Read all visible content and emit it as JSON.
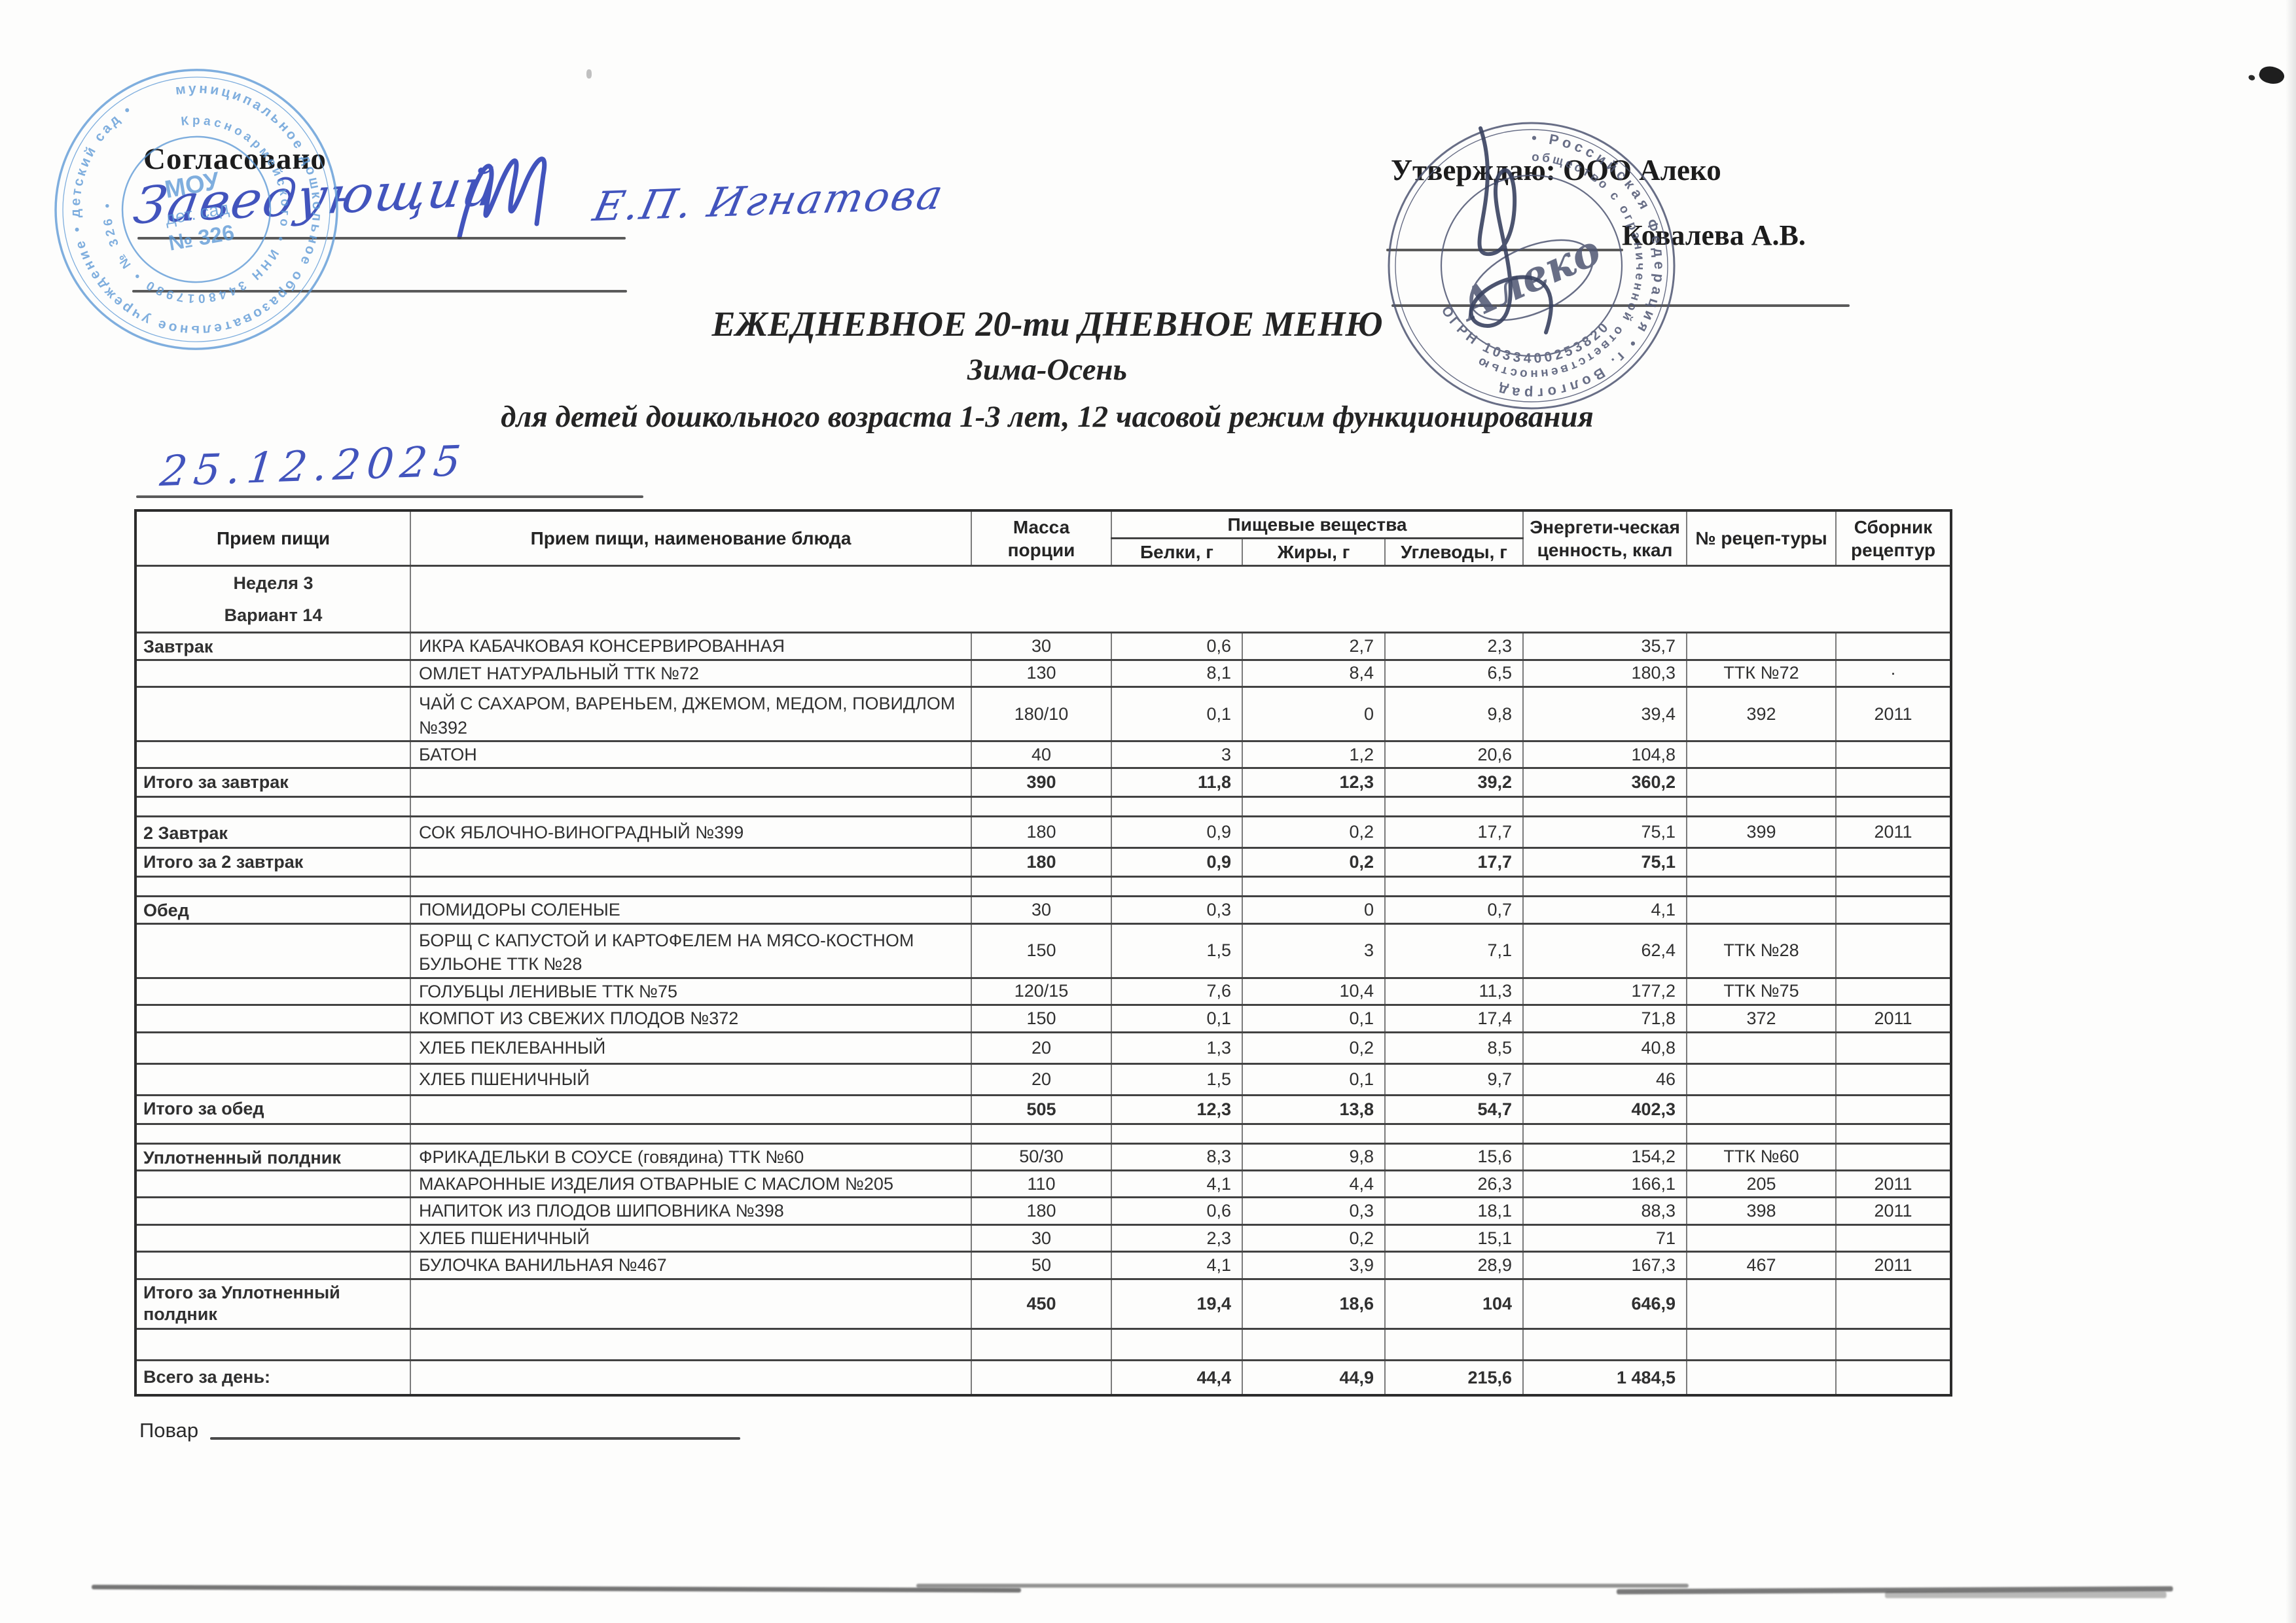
{
  "approvals": {
    "left_label": "Согласовано",
    "left_role_handwritten": "Заведующий",
    "left_name_handwritten": "Е.П. Игнатова",
    "right_label": "Утверждаю: ООО Алеко",
    "right_name": "Ковалева А.В."
  },
  "titles": {
    "line1": "ЕЖЕДНЕВНОЕ 20-ти ДНЕВНОЕ МЕНЮ",
    "line2": "Зима-Осень",
    "line3": "для детей дошкольного возраста 1-3 лет, 12 часовой режим функционирования"
  },
  "date_handwritten": "25.12.2025",
  "stamps": {
    "left": {
      "color": "#5c99d6",
      "ring_outer": "муниципальное дошкольное образовательное учреждение • детский сад •",
      "ring_inner": "Красноармейского • ИНН 3448017980 • № 326 •",
      "center_line1": "МОУ",
      "center_line2": "дет. сад",
      "center_line3": "№ 326"
    },
    "right": {
      "color": "#4f5672",
      "ring_outer": "• Российская Федерация • г. Волгоград ",
      "ring_inner": "общество с ограниченной ответственностью",
      "ogrn": "ОГРН 1033400253820",
      "center": "Алеко"
    }
  },
  "table": {
    "headers": {
      "meal": "Прием пищи",
      "dish": "Прием пищи, наименование блюда",
      "mass": "Масса\nпорции",
      "nutrients_group": "Пищевые вещества",
      "protein": "Белки, г",
      "fat": "Жиры, г",
      "carbs": "Углеводы, г",
      "energy": "Энергети-ческая\nценность, ккал",
      "recipe": "№ рецеп-туры",
      "source": "Сборник\nрецептур"
    },
    "rows": [
      {
        "kind": "week",
        "line1": "Неделя 3",
        "line2": "Вариант 14"
      },
      {
        "kind": "dish",
        "meal": "Завтрак",
        "dish": "ИКРА КАБАЧКОВАЯ КОНСЕРВИРОВАННАЯ",
        "mass": "30",
        "protein": "0,6",
        "fat": "2,7",
        "carbs": "2,3",
        "kcal": "35,7",
        "recipe": "",
        "source": ""
      },
      {
        "kind": "dish",
        "meal": "",
        "dish": "ОМЛЕТ НАТУРАЛЬНЫЙ ТТК №72",
        "mass": "130",
        "protein": "8,1",
        "fat": "8,4",
        "carbs": "6,5",
        "kcal": "180,3",
        "recipe": "ТТК №72",
        "source": "·"
      },
      {
        "kind": "dish",
        "size": "tall",
        "meal": "",
        "dish": "ЧАЙ С САХАРОМ, ВАРЕНЬЕМ, ДЖЕМОМ, МЕДОМ, ПОВИДЛОМ\n№392",
        "mass": "180/10",
        "protein": "0,1",
        "fat": "0",
        "carbs": "9,8",
        "kcal": "39,4",
        "recipe": "392",
        "source": "2011"
      },
      {
        "kind": "dish",
        "meal": "",
        "dish": "БАТОН",
        "mass": "40",
        "protein": "3",
        "fat": "1,2",
        "carbs": "20,6",
        "kcal": "104,8",
        "recipe": "",
        "source": ""
      },
      {
        "kind": "total",
        "meal": "Итого за завтрак",
        "dish": "",
        "mass": "390",
        "protein": "11,8",
        "fat": "12,3",
        "carbs": "39,2",
        "kcal": "360,2",
        "recipe": "",
        "source": ""
      },
      {
        "kind": "spacer"
      },
      {
        "kind": "dish",
        "size": "roomy",
        "meal": "2 Завтрак",
        "dish": "СОК ЯБЛОЧНО-ВИНОГРАДНЫЙ №399",
        "mass": "180",
        "protein": "0,9",
        "fat": "0,2",
        "carbs": "17,7",
        "kcal": "75,1",
        "recipe": "399",
        "source": "2011"
      },
      {
        "kind": "total",
        "meal": "Итого за 2 завтрак",
        "dish": "",
        "mass": "180",
        "protein": "0,9",
        "fat": "0,2",
        "carbs": "17,7",
        "kcal": "75,1",
        "recipe": "",
        "source": ""
      },
      {
        "kind": "spacer"
      },
      {
        "kind": "dish",
        "meal": "Обед",
        "dish": "ПОМИДОРЫ СОЛЕНЫЕ",
        "mass": "30",
        "protein": "0,3",
        "fat": "0",
        "carbs": "0,7",
        "kcal": "4,1",
        "recipe": "",
        "source": ""
      },
      {
        "kind": "dish",
        "size": "tall",
        "meal": "",
        "dish": "БОРЩ С КАПУСТОЙ И КАРТОФЕЛЕМ НА МЯСО-КОСТНОМ\nБУЛЬОНЕ ТТК №28",
        "mass": "150",
        "protein": "1,5",
        "fat": "3",
        "carbs": "7,1",
        "kcal": "62,4",
        "recipe": "ТТК №28",
        "source": ""
      },
      {
        "kind": "dish",
        "meal": "",
        "dish": "ГОЛУБЦЫ ЛЕНИВЫЕ ТТК №75",
        "mass": "120/15",
        "protein": "7,6",
        "fat": "10,4",
        "carbs": "11,3",
        "kcal": "177,2",
        "recipe": "ТТК №75",
        "source": ""
      },
      {
        "kind": "dish",
        "meal": "",
        "dish": "КОМПОТ ИЗ СВЕЖИХ ПЛОДОВ №372",
        "mass": "150",
        "protein": "0,1",
        "fat": "0,1",
        "carbs": "17,4",
        "kcal": "71,8",
        "recipe": "372",
        "source": "2011"
      },
      {
        "kind": "dish",
        "size": "roomy",
        "meal": "",
        "dish": "ХЛЕБ ПЕКЛЕВАННЫЙ",
        "mass": "20",
        "protein": "1,3",
        "fat": "0,2",
        "carbs": "8,5",
        "kcal": "40,8",
        "recipe": "",
        "source": ""
      },
      {
        "kind": "dish",
        "size": "roomy",
        "meal": "",
        "dish": "ХЛЕБ ПШЕНИЧНЫЙ",
        "mass": "20",
        "protein": "1,5",
        "fat": "0,1",
        "carbs": "9,7",
        "kcal": "46",
        "recipe": "",
        "source": ""
      },
      {
        "kind": "total",
        "meal": "Итого за обед",
        "dish": "",
        "mass": "505",
        "protein": "12,3",
        "fat": "13,8",
        "carbs": "54,7",
        "kcal": "402,3",
        "recipe": "",
        "source": ""
      },
      {
        "kind": "spacer"
      },
      {
        "kind": "dish",
        "meal": "Уплотненный полдник",
        "dish": "ФРИКАДЕЛЬКИ В СОУСЕ (говядина) ТТК №60",
        "mass": "50/30",
        "protein": "8,3",
        "fat": "9,8",
        "carbs": "15,6",
        "kcal": "154,2",
        "recipe": "ТТК №60",
        "source": ""
      },
      {
        "kind": "dish",
        "meal": "",
        "dish": "МАКАРОННЫЕ ИЗДЕЛИЯ ОТВАРНЫЕ С МАСЛОМ №205",
        "mass": "110",
        "protein": "4,1",
        "fat": "4,4",
        "carbs": "26,3",
        "kcal": "166,1",
        "recipe": "205",
        "source": "2011"
      },
      {
        "kind": "dish",
        "meal": "",
        "dish": "НАПИТОК ИЗ ПЛОДОВ ШИПОВНИКА №398",
        "mass": "180",
        "protein": "0,6",
        "fat": "0,3",
        "carbs": "18,1",
        "kcal": "88,3",
        "recipe": "398",
        "source": "2011"
      },
      {
        "kind": "dish",
        "meal": "",
        "dish": "ХЛЕБ ПШЕНИЧНЫЙ",
        "mass": "30",
        "protein": "2,3",
        "fat": "0,2",
        "carbs": "15,1",
        "kcal": "71",
        "recipe": "",
        "source": ""
      },
      {
        "kind": "dish",
        "meal": "",
        "dish": "БУЛОЧКА ВАНИЛЬНАЯ №467",
        "mass": "50",
        "protein": "4,1",
        "fat": "3,9",
        "carbs": "28,9",
        "kcal": "167,3",
        "recipe": "467",
        "source": "2011"
      },
      {
        "kind": "total",
        "size": "big",
        "meal": "Итого за Уплотненный\nполдник",
        "dish": "",
        "mass": "450",
        "protein": "19,4",
        "fat": "18,6",
        "carbs": "104",
        "kcal": "646,9",
        "recipe": "",
        "source": ""
      },
      {
        "kind": "spacer",
        "size": "roomy"
      },
      {
        "kind": "grand",
        "meal": "Всего за день:",
        "dish": "",
        "mass": "",
        "protein": "44,4",
        "fat": "44,9",
        "carbs": "215,6",
        "kcal": "1 484,5",
        "recipe": "",
        "source": ""
      }
    ]
  },
  "footer": {
    "cook_label": "Повар"
  }
}
